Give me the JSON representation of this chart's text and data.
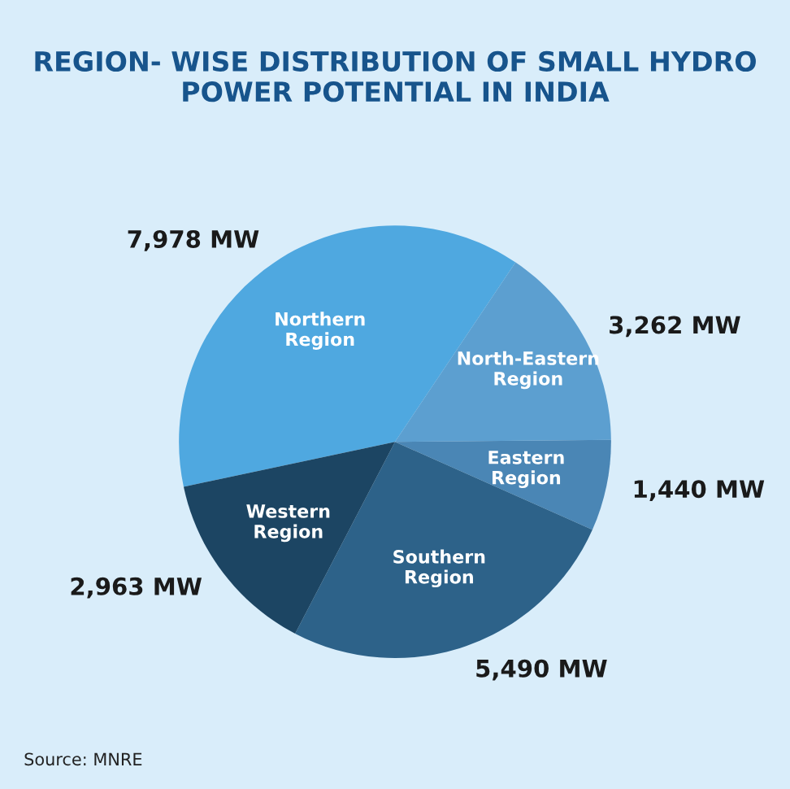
{
  "chart_data": {
    "type": "pie",
    "title": "REGION- WISE DISTRIBUTION OF SMALL HYDRO POWER POTENTIAL IN INDIA",
    "categories": [
      "Northern Region",
      "North-Eastern Region",
      "Eastern Region",
      "Southern Region",
      "Western Region"
    ],
    "values": [
      7978,
      3262,
      1440,
      5490,
      2963
    ],
    "value_labels": [
      "7,978 MW",
      "3,262 MW",
      "1,440 MW",
      "5,490 MW",
      "2,963 MW"
    ],
    "colors": [
      "#4fa8e0",
      "#5c9fd0",
      "#4a86b5",
      "#2d6289",
      "#1c4563"
    ],
    "annotations": [
      "Source: MNRE"
    ],
    "legend": false
  }
}
